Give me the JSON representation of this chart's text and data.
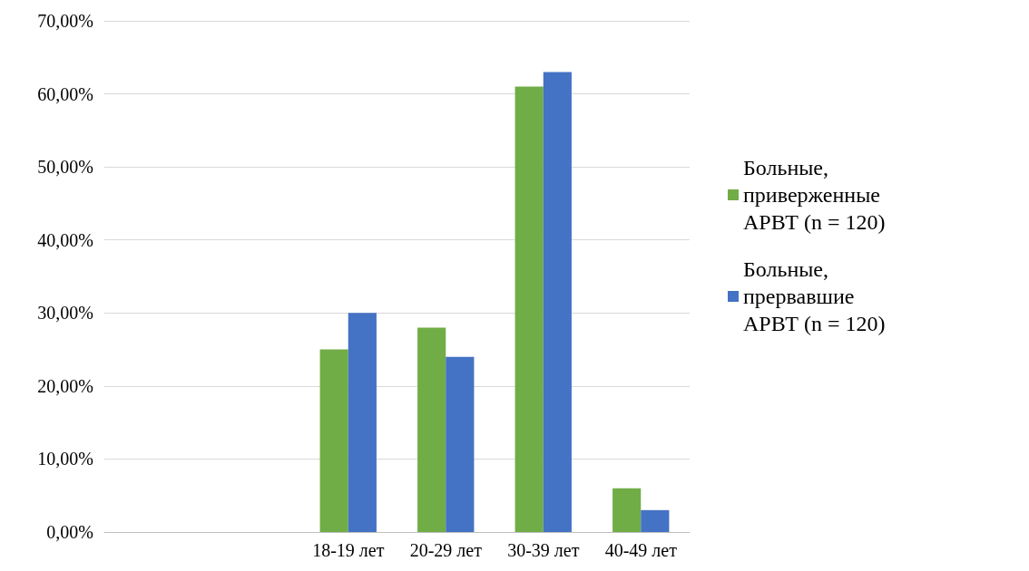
{
  "chart_data": {
    "type": "bar",
    "categories": [
      null,
      null,
      "18-19 лет",
      "20-29 лет",
      "30-39 лет",
      "40-49 лет"
    ],
    "series": [
      {
        "name": "Больные, приверженные АРВТ (n = 120)",
        "color": "#70ad47",
        "values": [
          null,
          null,
          25,
          28,
          61,
          6
        ]
      },
      {
        "name": "Больные, прервавшие АРВТ (n = 120)",
        "color": "#4472c4",
        "values": [
          null,
          null,
          30,
          24,
          63,
          3
        ]
      }
    ],
    "ylim": [
      0,
      70
    ],
    "yticks": [
      {
        "value": 0,
        "label": "0,00%"
      },
      {
        "value": 10,
        "label": "10,00%"
      },
      {
        "value": 20,
        "label": "20,00%"
      },
      {
        "value": 30,
        "label": "30,00%"
      },
      {
        "value": 40,
        "label": "40,00%"
      },
      {
        "value": 50,
        "label": "50,00%"
      },
      {
        "value": 60,
        "label": "60,00%"
      },
      {
        "value": 70,
        "label": "70,00%"
      }
    ],
    "grid": "y",
    "legend": "right"
  }
}
